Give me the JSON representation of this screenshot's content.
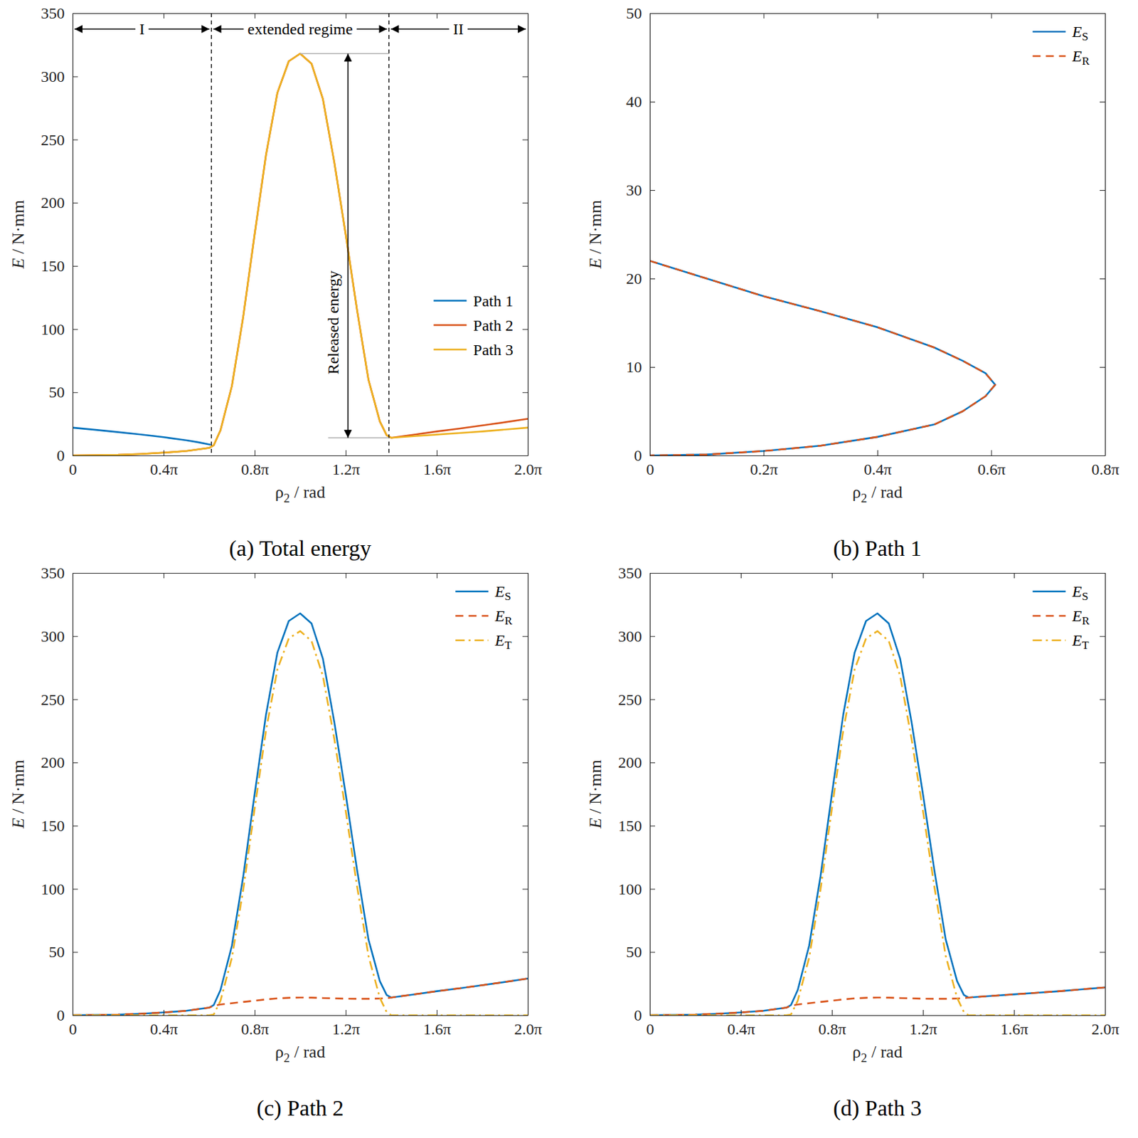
{
  "chart_data": [
    {
      "type": "line",
      "title": "(a) Total energy",
      "x_label": "ρ2 / rad",
      "y_label": "E / N·mm",
      "xlim": [
        0,
        6.2832
      ],
      "xticks": [
        0,
        {
          "value": 1.2566,
          "label": "0.4π"
        },
        {
          "value": 2.5133,
          "label": "0.8π"
        },
        {
          "value": 3.7699,
          "label": "1.2π"
        },
        {
          "value": 5.0265,
          "label": "1.6π"
        },
        {
          "value": 6.2832,
          "label": "2.0π"
        }
      ],
      "ylim": [
        0,
        350
      ],
      "yticks": [
        0,
        50,
        100,
        150,
        200,
        250,
        300,
        350
      ],
      "legend": "east",
      "series": [
        {
          "name": "Path 1",
          "color": "#0072BD",
          "line_style": "solid",
          "x": [
            0,
            0.3142,
            0.6283,
            0.9425,
            1.2566,
            1.5708,
            1.7279,
            1.9069
          ],
          "values": [
            22,
            20.3,
            18.5,
            16.6,
            14.5,
            12,
            10.5,
            8.5
          ]
        },
        {
          "name": "Path 2",
          "color": "#D95319",
          "line_style": "solid",
          "x": [
            0,
            0.3142,
            0.6283,
            0.9425,
            1.2566,
            1.5708,
            1.885,
            1.9478,
            2.042,
            2.1991,
            2.3562,
            2.5133,
            2.6704,
            2.8274,
            2.9845,
            3.1416,
            3.2987,
            3.4558,
            3.6128,
            3.7699,
            3.927,
            4.0841,
            4.2412,
            4.3354,
            4.3982,
            4.7124,
            5.0265,
            5.3407,
            5.6549,
            5.969,
            6.2832
          ],
          "values": [
            0,
            0.2,
            0.5,
            1.2,
            2.2,
            3.5,
            6,
            8,
            20,
            55,
            110,
            175,
            238,
            287,
            312,
            318,
            310,
            282,
            232,
            175,
            115,
            60,
            27,
            16,
            14,
            16.5,
            19,
            21.3,
            23.8,
            26.3,
            29
          ]
        },
        {
          "name": "Path 3",
          "color": "#EDB120",
          "line_style": "solid",
          "x": [
            0,
            0.3142,
            0.6283,
            0.9425,
            1.2566,
            1.5708,
            1.885,
            1.9478,
            2.042,
            2.1991,
            2.3562,
            2.5133,
            2.6704,
            2.8274,
            2.9845,
            3.1416,
            3.2987,
            3.4558,
            3.6128,
            3.7699,
            3.927,
            4.0841,
            4.2412,
            4.3354,
            4.3982,
            4.7124,
            5.0265,
            5.3407,
            5.6549,
            5.969,
            6.2832
          ],
          "values": [
            0,
            0.2,
            0.5,
            1.2,
            2.2,
            3.5,
            6,
            8,
            20,
            55,
            110,
            175,
            238,
            287,
            312,
            318,
            310,
            282,
            232,
            175,
            115,
            60,
            27,
            16,
            14,
            15.3,
            16.5,
            17.8,
            19,
            20.5,
            22
          ]
        }
      ],
      "regions": [
        {
          "label": "I",
          "x0": 0,
          "x1": 1.9164
        },
        {
          "label": "extended regime",
          "x0": 1.9164,
          "x1": 4.3668
        },
        {
          "label": "II",
          "x0": 4.3668,
          "x1": 6.2832
        }
      ],
      "released_energy": {
        "label": "Released energy",
        "x": 3.8013,
        "from": 318,
        "to": 14
      }
    },
    {
      "type": "line",
      "title": "(b) Path 1",
      "x_label": "ρ2 / rad",
      "y_label": "E / N·mm",
      "xlim": [
        0,
        2.5133
      ],
      "xticks": [
        0,
        {
          "value": 0.6283,
          "label": "0.2π"
        },
        {
          "value": 1.2566,
          "label": "0.4π"
        },
        {
          "value": 1.885,
          "label": "0.6π"
        },
        {
          "value": 2.5133,
          "label": "0.8π"
        }
      ],
      "ylim": [
        0,
        50
      ],
      "yticks": [
        0,
        10,
        20,
        30,
        40,
        50
      ],
      "legend": "northeast",
      "series": [
        {
          "name": "ES",
          "color": "#0072BD",
          "line_style": "solid",
          "x": [
            0,
            0.3142,
            0.6283,
            0.9425,
            1.2566,
            1.5708,
            1.7279,
            1.8535,
            1.9069,
            1.8535,
            1.7279,
            1.5708,
            1.2566,
            0.9425,
            0.6283,
            0.3142,
            0
          ],
          "values": [
            22,
            20,
            18,
            16.3,
            14.5,
            12.2,
            10.7,
            9.3,
            8,
            6.7,
            5,
            3.5,
            2.1,
            1.1,
            0.5,
            0.1,
            0
          ]
        },
        {
          "name": "ER",
          "color": "#D95319",
          "line_style": "dashed",
          "x": [
            0,
            0.3142,
            0.6283,
            0.9425,
            1.2566,
            1.5708,
            1.7279,
            1.8535,
            1.9069,
            1.8535,
            1.7279,
            1.5708,
            1.2566,
            0.9425,
            0.6283,
            0.3142,
            0
          ],
          "values": [
            22,
            20,
            18,
            16.3,
            14.5,
            12.2,
            10.7,
            9.3,
            8,
            6.7,
            5,
            3.5,
            2.1,
            1.1,
            0.5,
            0.1,
            0
          ]
        }
      ]
    },
    {
      "type": "line",
      "title": "(c) Path 2",
      "x_label": "ρ2 / rad",
      "y_label": "E / N·mm",
      "xlim": [
        0,
        6.2832
      ],
      "xticks": [
        0,
        {
          "value": 1.2566,
          "label": "0.4π"
        },
        {
          "value": 2.5133,
          "label": "0.8π"
        },
        {
          "value": 3.7699,
          "label": "1.2π"
        },
        {
          "value": 5.0265,
          "label": "1.6π"
        },
        {
          "value": 6.2832,
          "label": "2.0π"
        }
      ],
      "ylim": [
        0,
        350
      ],
      "yticks": [
        0,
        50,
        100,
        150,
        200,
        250,
        300,
        350
      ],
      "legend": "northeast",
      "series": [
        {
          "name": "ES",
          "color": "#0072BD",
          "line_style": "solid",
          "x": [
            0,
            0.3142,
            0.6283,
            0.9425,
            1.2566,
            1.5708,
            1.885,
            1.9478,
            2.042,
            2.1991,
            2.3562,
            2.5133,
            2.6704,
            2.8274,
            2.9845,
            3.1416,
            3.2987,
            3.4558,
            3.6128,
            3.7699,
            3.927,
            4.0841,
            4.2412,
            4.3354,
            4.3982,
            4.7124,
            5.0265,
            5.3407,
            5.6549,
            5.969,
            6.2832
          ],
          "values": [
            0,
            0.2,
            0.5,
            1.2,
            2.2,
            3.5,
            6,
            8,
            20,
            55,
            110,
            175,
            238,
            287,
            312,
            318,
            310,
            282,
            232,
            175,
            115,
            60,
            27,
            16,
            14,
            16.5,
            19,
            21.3,
            23.8,
            26.3,
            29
          ]
        },
        {
          "name": "ER",
          "color": "#D95319",
          "line_style": "dashed",
          "x": [
            0,
            0.3142,
            0.6283,
            0.9425,
            1.2566,
            1.5708,
            1.885,
            1.9478,
            2.042,
            2.1991,
            2.3562,
            2.5133,
            2.6704,
            2.8274,
            2.9845,
            3.1416,
            3.2987,
            3.4558,
            3.6128,
            3.7699,
            3.927,
            4.0841,
            4.2412,
            4.3354,
            4.3982,
            4.7124,
            5.0265,
            5.3407,
            5.6549,
            5.969,
            6.2832
          ],
          "values": [
            0,
            0.2,
            0.5,
            1.2,
            2.2,
            3.5,
            6,
            7.5,
            8.5,
            9.5,
            10.5,
            11.5,
            12.5,
            13.3,
            13.8,
            14,
            13.9,
            13.6,
            13.3,
            13.1,
            13,
            13,
            13.2,
            13.5,
            14,
            16.5,
            19,
            21.3,
            23.8,
            26.3,
            29
          ]
        },
        {
          "name": "ET",
          "color": "#EDB120",
          "line_style": "dashdot",
          "x": [
            0,
            0.3142,
            0.6283,
            0.9425,
            1.2566,
            1.5708,
            1.885,
            1.9478,
            2.042,
            2.1991,
            2.3562,
            2.5133,
            2.6704,
            2.8274,
            2.9845,
            3.1416,
            3.2987,
            3.4558,
            3.6128,
            3.7699,
            3.927,
            4.0841,
            4.2412,
            4.3354,
            4.3982,
            4.7124,
            5.0265,
            5.3407,
            5.6549,
            5.969,
            6.2832
          ],
          "values": [
            0,
            0,
            0,
            0,
            0,
            0,
            0,
            0.5,
            11.5,
            45.5,
            99.5,
            163.5,
            225.5,
            273.7,
            298.2,
            304,
            296.1,
            268.4,
            218.7,
            161.9,
            102,
            47,
            13.8,
            2.5,
            0,
            0,
            0,
            0,
            0,
            0,
            0
          ]
        }
      ]
    },
    {
      "type": "line",
      "title": "(d) Path 3",
      "x_label": "ρ2 / rad",
      "y_label": "E / N·mm",
      "xlim": [
        0,
        6.2832
      ],
      "xticks": [
        0,
        {
          "value": 1.2566,
          "label": "0.4π"
        },
        {
          "value": 2.5133,
          "label": "0.8π"
        },
        {
          "value": 3.7699,
          "label": "1.2π"
        },
        {
          "value": 5.0265,
          "label": "1.6π"
        },
        {
          "value": 6.2832,
          "label": "2.0π"
        }
      ],
      "ylim": [
        0,
        350
      ],
      "yticks": [
        0,
        50,
        100,
        150,
        200,
        250,
        300,
        350
      ],
      "legend": "northeast",
      "series": [
        {
          "name": "ES",
          "color": "#0072BD",
          "line_style": "solid",
          "x": [
            0,
            0.3142,
            0.6283,
            0.9425,
            1.2566,
            1.5708,
            1.885,
            1.9478,
            2.042,
            2.1991,
            2.3562,
            2.5133,
            2.6704,
            2.8274,
            2.9845,
            3.1416,
            3.2987,
            3.4558,
            3.6128,
            3.7699,
            3.927,
            4.0841,
            4.2412,
            4.3354,
            4.3982,
            4.7124,
            5.0265,
            5.3407,
            5.6549,
            5.969,
            6.2832
          ],
          "values": [
            0,
            0.2,
            0.5,
            1.2,
            2.2,
            3.5,
            6,
            8,
            20,
            55,
            110,
            175,
            238,
            287,
            312,
            318,
            310,
            282,
            232,
            175,
            115,
            60,
            27,
            16,
            14,
            15.3,
            16.5,
            17.8,
            19,
            20.5,
            22
          ]
        },
        {
          "name": "ER",
          "color": "#D95319",
          "line_style": "dashed",
          "x": [
            0,
            0.3142,
            0.6283,
            0.9425,
            1.2566,
            1.5708,
            1.885,
            1.9478,
            2.042,
            2.1991,
            2.3562,
            2.5133,
            2.6704,
            2.8274,
            2.9845,
            3.1416,
            3.2987,
            3.4558,
            3.6128,
            3.7699,
            3.927,
            4.0841,
            4.2412,
            4.3354,
            4.3982,
            4.7124,
            5.0265,
            5.3407,
            5.6549,
            5.969,
            6.2832
          ],
          "values": [
            0,
            0.2,
            0.5,
            1.2,
            2.2,
            3.5,
            6,
            7.5,
            8.5,
            9.5,
            10.5,
            11.5,
            12.5,
            13.3,
            13.8,
            14,
            13.9,
            13.6,
            13.3,
            13.1,
            13,
            13,
            13.2,
            13.5,
            14,
            15.3,
            16.5,
            17.8,
            19,
            20.5,
            22
          ]
        },
        {
          "name": "ET",
          "color": "#EDB120",
          "line_style": "dashdot",
          "x": [
            0,
            0.3142,
            0.6283,
            0.9425,
            1.2566,
            1.5708,
            1.885,
            1.9478,
            2.042,
            2.1991,
            2.3562,
            2.5133,
            2.6704,
            2.8274,
            2.9845,
            3.1416,
            3.2987,
            3.4558,
            3.6128,
            3.7699,
            3.927,
            4.0841,
            4.2412,
            4.3354,
            4.3982,
            4.7124,
            5.0265,
            5.3407,
            5.6549,
            5.969,
            6.2832
          ],
          "values": [
            0,
            0,
            0,
            0,
            0,
            0,
            0,
            0.5,
            11.5,
            45.5,
            99.5,
            163.5,
            225.5,
            273.7,
            298.2,
            304,
            296.1,
            268.4,
            218.7,
            161.9,
            102,
            47,
            13.8,
            2.5,
            0,
            0,
            0,
            0,
            0,
            0,
            0
          ]
        }
      ]
    }
  ]
}
